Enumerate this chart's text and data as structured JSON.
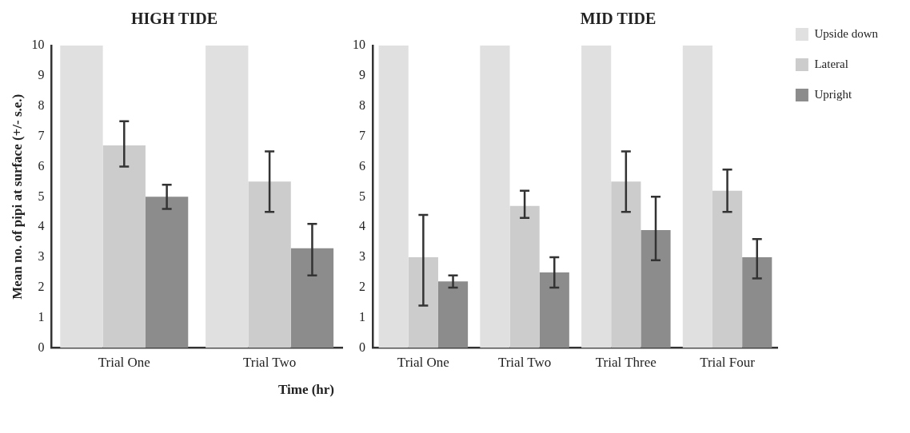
{
  "chart_data": [
    {
      "type": "bar",
      "title": "HIGH TIDE",
      "ylabel": "Mean no. of pipi at surface (+/- s.e.)",
      "xlabel": "Time (hr)",
      "categories": [
        "Trial One",
        "Trial Two"
      ],
      "ylim": [
        0,
        10
      ],
      "yticks": [
        0,
        1,
        2,
        3,
        4,
        5,
        6,
        7,
        8,
        9,
        10
      ],
      "grid": false,
      "legend": false,
      "series": [
        {
          "color": "#e0e0e0",
          "values": [
            10,
            10
          ]
        },
        {
          "color": "#cccccc",
          "values": [
            6.7,
            5.5
          ],
          "errors": [
            [
              6.0,
              7.5
            ],
            [
              4.5,
              6.5
            ]
          ]
        },
        {
          "color": "#8c8c8c",
          "values": [
            5.0,
            3.3
          ],
          "errors": [
            [
              4.6,
              5.4
            ],
            [
              2.4,
              4.1
            ]
          ]
        }
      ]
    },
    {
      "type": "bar",
      "title": "MID TIDE",
      "categories": [
        "Trial One",
        "Trial Two",
        "Trial Three",
        "Trial Four"
      ],
      "ylim": [
        0,
        10
      ],
      "yticks": [
        0,
        1,
        2,
        3,
        4,
        5,
        6,
        7,
        8,
        9,
        10
      ],
      "grid": false,
      "legend": "right",
      "series": [
        {
          "name": "Upside down",
          "color": "#e0e0e0",
          "values": [
            10,
            10,
            10,
            10
          ]
        },
        {
          "name": "Lateral",
          "color": "#cccccc",
          "values": [
            3.0,
            4.7,
            5.5,
            5.2
          ],
          "errors": [
            [
              1.4,
              4.4
            ],
            [
              4.3,
              5.2
            ],
            [
              4.5,
              6.5
            ],
            [
              4.5,
              5.9
            ]
          ]
        },
        {
          "name": "Upright",
          "color": "#8c8c8c",
          "values": [
            2.2,
            2.5,
            3.9,
            3.0
          ],
          "errors": [
            [
              2.0,
              2.4
            ],
            [
              2.0,
              3.0
            ],
            [
              2.9,
              5.0
            ],
            [
              2.3,
              3.6
            ]
          ]
        }
      ]
    }
  ]
}
